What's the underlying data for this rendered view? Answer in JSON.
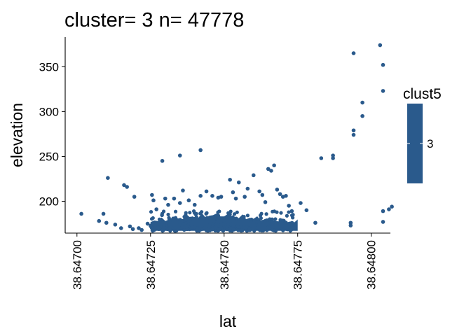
{
  "chart_data": {
    "type": "scatter",
    "title": "cluster= 3 n= 47778",
    "xlabel": "lat",
    "ylabel": "elevation",
    "xlim": [
      38.64696,
      38.648065
    ],
    "ylim": [
      164.5,
      383
    ],
    "x_ticks": [
      {
        "value": 38.647,
        "label": "38.64700"
      },
      {
        "value": 38.64725,
        "label": "38.64725"
      },
      {
        "value": 38.6475,
        "label": "38.64750"
      },
      {
        "value": 38.64775,
        "label": "38.64775"
      },
      {
        "value": 38.648,
        "label": "38.64800"
      }
    ],
    "y_ticks": [
      {
        "value": 200,
        "label": "200"
      },
      {
        "value": 250,
        "label": "250"
      },
      {
        "value": 300,
        "label": "300"
      },
      {
        "value": 350,
        "label": "350"
      }
    ],
    "color": "#2a5a8c",
    "legend": {
      "title": "clust5",
      "label": "3",
      "placement": "right"
    },
    "grid": false,
    "dense_band": {
      "x_start": 38.64725,
      "x_end": 38.64775,
      "y_low": 167,
      "y_high": 188
    },
    "series": [
      {
        "points": [
          [
            38.647015,
            186
          ],
          [
            38.647075,
            178
          ],
          [
            38.64709,
            186
          ],
          [
            38.6471,
            176
          ],
          [
            38.647105,
            226
          ],
          [
            38.64713,
            174
          ],
          [
            38.64715,
            170
          ],
          [
            38.64716,
            218
          ],
          [
            38.64717,
            216
          ],
          [
            38.64718,
            172
          ],
          [
            38.64719,
            169
          ],
          [
            38.64721,
            170
          ],
          [
            38.64722,
            168
          ],
          [
            38.647195,
            205
          ],
          [
            38.64724,
            175
          ],
          [
            38.647255,
            207
          ],
          [
            38.64726,
            201
          ],
          [
            38.64727,
            191
          ],
          [
            38.64729,
            245
          ],
          [
            38.6473,
            203
          ],
          [
            38.64731,
            196
          ],
          [
            38.64733,
            203
          ],
          [
            38.64735,
            251
          ],
          [
            38.64735,
            198
          ],
          [
            38.64736,
            212
          ],
          [
            38.64738,
            201
          ],
          [
            38.6474,
            196
          ],
          [
            38.64742,
            257
          ],
          [
            38.64742,
            206
          ],
          [
            38.64744,
            211
          ],
          [
            38.64746,
            206
          ],
          [
            38.64748,
            204
          ],
          [
            38.64749,
            205
          ],
          [
            38.64752,
            224
          ],
          [
            38.64753,
            210
          ],
          [
            38.64754,
            203
          ],
          [
            38.64755,
            221
          ],
          [
            38.64757,
            205
          ],
          [
            38.64758,
            214
          ],
          [
            38.6476,
            229
          ],
          [
            38.64762,
            211
          ],
          [
            38.64763,
            207
          ],
          [
            38.64764,
            199
          ],
          [
            38.64765,
            236
          ],
          [
            38.64766,
            234
          ],
          [
            38.64767,
            240
          ],
          [
            38.64768,
            213
          ],
          [
            38.64769,
            208
          ],
          [
            38.6477,
            205
          ],
          [
            38.64771,
            206
          ],
          [
            38.64772,
            195
          ],
          [
            38.64773,
            189
          ],
          [
            38.64776,
            198
          ],
          [
            38.64778,
            190
          ],
          [
            38.64781,
            176
          ],
          [
            38.64783,
            248
          ],
          [
            38.64787,
            251
          ],
          [
            38.64787,
            248
          ],
          [
            38.64793,
            176
          ],
          [
            38.64793,
            173
          ],
          [
            38.64794,
            365
          ],
          [
            38.64794,
            279
          ],
          [
            38.64794,
            274
          ],
          [
            38.64797,
            310
          ],
          [
            38.64797,
            295
          ],
          [
            38.64803,
            374
          ],
          [
            38.64804,
            352
          ],
          [
            38.64804,
            323
          ],
          [
            38.64804,
            189
          ],
          [
            38.64804,
            177
          ],
          [
            38.64806,
            191
          ],
          [
            38.64807,
            194
          ]
        ]
      }
    ]
  }
}
